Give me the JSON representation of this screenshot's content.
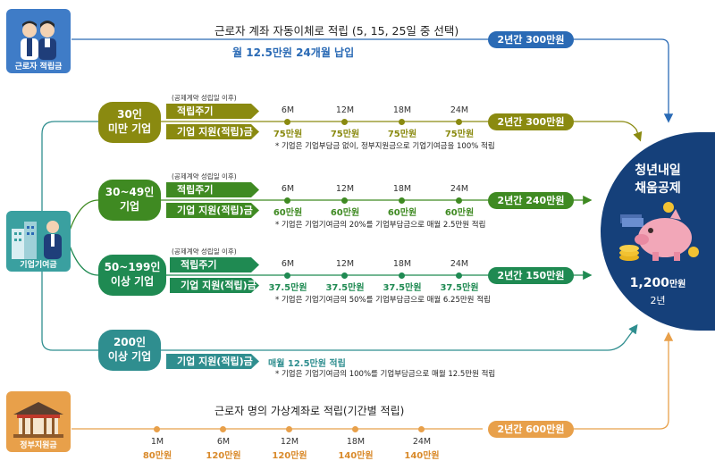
{
  "worker": {
    "icon_label": "근로자 적립금",
    "description": "근로자 계좌 자동이체로 적립 (5, 15, 25일 중 선택)",
    "payment": "월 12.5만원 24개월 납입",
    "total": "2년간 300만원"
  },
  "company": {
    "icon_label": "기업기여금"
  },
  "government": {
    "icon_label": "정부지원금",
    "description": "근로자 명의 가상계좌로 적립(기간별 적립)",
    "total": "2년간 600만원",
    "schedule": [
      {
        "month": "1M",
        "amount": "80만원"
      },
      {
        "month": "6M",
        "amount": "120만원"
      },
      {
        "month": "12M",
        "amount": "120만원"
      },
      {
        "month": "18M",
        "amount": "140만원"
      },
      {
        "month": "24M",
        "amount": "140만원"
      }
    ]
  },
  "tiers": [
    {
      "name_line1": "30인",
      "name_line2": "미만 기업",
      "contract_note": "(공제계약 성립일 이후)",
      "cycle_label": "적립주기",
      "support_label": "기업 지원(적립)금",
      "months": [
        "6M",
        "12M",
        "18M",
        "24M"
      ],
      "amounts": [
        "75만원",
        "75만원",
        "75만원",
        "75만원"
      ],
      "total": "2년간 300만원",
      "note": "* 기업은 기업부담금 없이, 정부지원금으로 기업기여금을 100% 적립"
    },
    {
      "name_line1": "30~49인",
      "name_line2": "기업",
      "contract_note": "(공제계약 성립일 이후)",
      "cycle_label": "적립주기",
      "support_label": "기업 지원(적립)금",
      "months": [
        "6M",
        "12M",
        "18M",
        "24M"
      ],
      "amounts": [
        "60만원",
        "60만원",
        "60만원",
        "60만원"
      ],
      "total": "2년간 240만원",
      "note": "* 기업은 기업기여금의 20%를 기업부담금으로 매월 2.5만원 적립"
    },
    {
      "name_line1": "50~199인",
      "name_line2": "이상 기업",
      "contract_note": "(공제계약 성립일 이후)",
      "cycle_label": "적립주기",
      "support_label": "기업 지원(적립)금",
      "months": [
        "6M",
        "12M",
        "18M",
        "24M"
      ],
      "amounts": [
        "37.5만원",
        "37.5만원",
        "37.5만원",
        "37.5만원"
      ],
      "total": "2년간 150만원",
      "note": "* 기업은 기업기여금의 50%를 기업부담금으로 매월 6.25만원 적립"
    },
    {
      "name_line1": "200인",
      "name_line2": "이상 기업",
      "support_label": "기업 지원(적립)금",
      "payment": "매월 12.5만원 적립",
      "note": "* 기업은 기업기여금의 100%를 기업부담금으로 매월 12.5만원 적립"
    }
  ],
  "result": {
    "title_line1": "청년내일",
    "title_line2": "채움공제",
    "amount_number": "1,200",
    "amount_unit": "만원",
    "period": "2년"
  },
  "colors": {
    "worker_blue": "#2a6ab5",
    "tier1_olive": "#8a8a10",
    "tier2_green": "#3f8a22",
    "tier3_green": "#1f8a52",
    "tier4_teal": "#2f8e8f",
    "gov_orange": "#e8a04a",
    "result_navy": "#15407a"
  }
}
